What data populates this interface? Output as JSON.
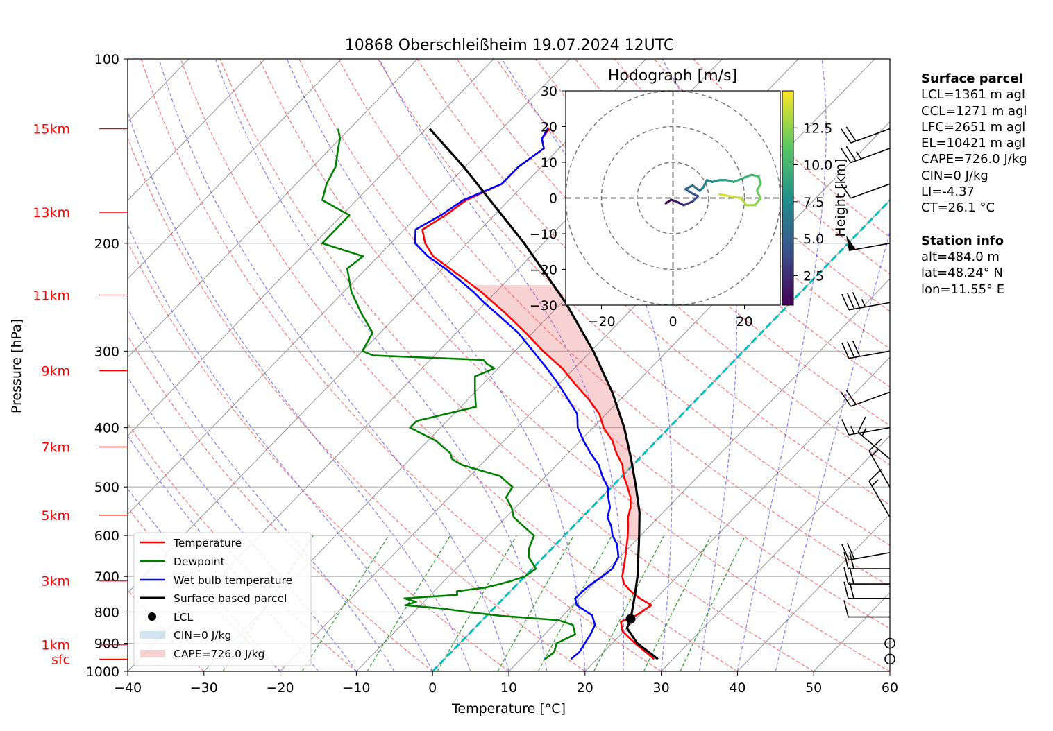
{
  "chart_data": {
    "type": "line",
    "title": "10868 Oberschleißheim 19.07.2024 12UTC",
    "xlabel": "Temperature [°C]",
    "ylabel": "Pressure [hPa]",
    "xlim": [
      -40,
      60
    ],
    "ylim": [
      1000,
      100
    ],
    "y_scale": "log",
    "skew": "skew-T",
    "grid": true,
    "legend_position": "lower-left",
    "x_ticks": [
      -40,
      -30,
      -20,
      -10,
      0,
      10,
      20,
      30,
      40,
      50,
      60
    ],
    "x_tick_labels": [
      "−40",
      "−30",
      "−20",
      "−10",
      "0",
      "10",
      "20",
      "30",
      "40",
      "50",
      "60"
    ],
    "y_ticks": [
      1000,
      900,
      800,
      700,
      600,
      500,
      400,
      300,
      200,
      100
    ],
    "height_markers": [
      {
        "label": "sfc",
        "p": 955
      },
      {
        "label": "1km",
        "p": 905
      },
      {
        "label": "3km",
        "p": 712
      },
      {
        "label": "5km",
        "p": 556
      },
      {
        "label": "7km",
        "p": 430
      },
      {
        "label": "9km",
        "p": 323
      },
      {
        "label": "11km",
        "p": 243
      },
      {
        "label": "13km",
        "p": 178
      },
      {
        "label": "15km",
        "p": 130
      }
    ],
    "series": [
      {
        "name": "Temperature",
        "color": "#ff0000",
        "p": [
          955,
          930,
          900,
          860,
          830,
          810,
          780,
          760,
          740,
          720,
          700,
          680,
          650,
          620,
          600,
          580,
          560,
          540,
          520,
          500,
          480,
          460,
          440,
          420,
          400,
          380,
          360,
          340,
          320,
          300,
          280,
          260,
          250,
          240,
          230,
          220,
          210,
          200,
          190,
          180,
          170,
          160,
          150,
          140,
          135,
          130
        ],
        "t": [
          27.5,
          25.5,
          23.0,
          19.8,
          18.4,
          19.6,
          20.3,
          17.9,
          15.8,
          14.0,
          12.8,
          12.0,
          10.7,
          9.3,
          8.3,
          7.2,
          6.0,
          5.1,
          3.8,
          2.1,
          0.2,
          -1.4,
          -3.7,
          -5.8,
          -8.6,
          -10.9,
          -14.1,
          -17.8,
          -21.6,
          -26.3,
          -30.9,
          -36.1,
          -39.0,
          -42.0,
          -45.4,
          -49.0,
          -52.8,
          -55.5,
          -57.6,
          -56.4,
          -55.6,
          -53.0,
          -53.0,
          -52.0,
          -53.5,
          -53.8
        ]
      },
      {
        "name": "Dewpoint",
        "color": "#008000",
        "p": [
          955,
          930,
          900,
          870,
          840,
          825,
          812,
          800,
          790,
          780,
          770,
          760,
          750,
          740,
          730,
          720,
          710,
          700,
          680,
          650,
          630,
          600,
          580,
          560,
          540,
          520,
          500,
          480,
          460,
          450,
          440,
          420,
          400,
          390,
          380,
          370,
          350,
          330,
          320,
          315,
          310,
          305,
          300,
          280,
          260,
          240,
          220,
          210,
          200,
          190,
          180,
          170,
          160,
          150,
          140,
          135,
          130
        ],
        "t": [
          13.2,
          13.5,
          12.7,
          14.0,
          12.5,
          10.0,
          2.0,
          -3.0,
          -6.5,
          -12.0,
          -11.0,
          -13.0,
          -6.5,
          -7.0,
          -3.8,
          -2.2,
          -1.0,
          0.0,
          0.5,
          -2.0,
          -3.0,
          -4.0,
          -6.5,
          -9.0,
          -10.5,
          -12.5,
          -13.0,
          -16.0,
          -22.5,
          -24.5,
          -25.5,
          -29.0,
          -34.0,
          -34.0,
          -31.0,
          -28.0,
          -30.0,
          -32.0,
          -30.5,
          -32.0,
          -33.0,
          -48.0,
          -50.0,
          -51.0,
          -55.0,
          -59.0,
          -62.5,
          -62.0,
          -69.0,
          -69.0,
          -69.0,
          -74.5,
          -76.0,
          -77.0,
          -79.0,
          -80.0,
          -81.5
        ]
      },
      {
        "name": "Wet bulb temperature",
        "color": "#0000ff",
        "p": [
          955,
          930,
          900,
          870,
          840,
          810,
          780,
          760,
          740,
          720,
          700,
          680,
          650,
          620,
          600,
          580,
          560,
          540,
          520,
          500,
          480,
          460,
          440,
          420,
          400,
          380,
          360,
          340,
          320,
          300,
          280,
          260,
          250,
          240,
          230,
          220,
          210,
          200,
          190,
          180,
          170,
          160,
          150,
          140,
          135,
          130
        ],
        "t": [
          16.6,
          16.8,
          16.4,
          16.0,
          15.4,
          13.8,
          10.5,
          9.4,
          9.5,
          9.7,
          10.2,
          10.5,
          9.8,
          8.0,
          6.3,
          5.0,
          3.3,
          2.4,
          0.9,
          -0.5,
          -2.6,
          -4.5,
          -7.1,
          -9.6,
          -12.0,
          -13.8,
          -16.8,
          -20.0,
          -23.6,
          -27.6,
          -31.9,
          -37.3,
          -40.2,
          -43.0,
          -46.2,
          -49.6,
          -53.5,
          -56.8,
          -58.5,
          -57.0,
          -56.0,
          -53.0,
          -53.0,
          -52.0,
          -53.5,
          -54.0
        ]
      },
      {
        "name": "Surface based parcel",
        "color": "#000000",
        "p": [
          955,
          900,
          850,
          821,
          800,
          750,
          700,
          650,
          600,
          550,
          500,
          450,
          400,
          350,
          300,
          250,
          200,
          150,
          130
        ],
        "t": [
          28.0,
          23.3,
          20.0,
          19.3,
          18.6,
          16.8,
          14.8,
          12.4,
          9.8,
          6.9,
          3.2,
          -1.0,
          -5.9,
          -12.0,
          -19.7,
          -29.5,
          -42.5,
          -60.2,
          -69.5
        ]
      }
    ],
    "lcl": {
      "p": 821,
      "t": 19.3,
      "label": "LCL"
    },
    "cin_label": "CIN=0 J/kg",
    "cape_label": "CAPE=726.0 J/kg",
    "wind_barbs": [
      {
        "p": 955,
        "dir": 350,
        "speed_kt": 3
      },
      {
        "p": 900,
        "dir": 330,
        "speed_kt": 3
      },
      {
        "p": 815,
        "dir": 270,
        "speed_kt": 10
      },
      {
        "p": 760,
        "dir": 270,
        "speed_kt": 20
      },
      {
        "p": 720,
        "dir": 270,
        "speed_kt": 20
      },
      {
        "p": 680,
        "dir": 270,
        "speed_kt": 20
      },
      {
        "p": 640,
        "dir": 260,
        "speed_kt": 20
      },
      {
        "p": 560,
        "dir": 330,
        "speed_kt": 15
      },
      {
        "p": 500,
        "dir": 330,
        "speed_kt": 15
      },
      {
        "p": 450,
        "dir": 310,
        "speed_kt": 15
      },
      {
        "p": 400,
        "dir": 260,
        "speed_kt": 15
      },
      {
        "p": 350,
        "dir": 250,
        "speed_kt": 20
      },
      {
        "p": 300,
        "dir": 260,
        "speed_kt": 30
      },
      {
        "p": 250,
        "dir": 260,
        "speed_kt": 35
      },
      {
        "p": 200,
        "dir": 260,
        "speed_kt": 50
      },
      {
        "p": 160,
        "dir": 250,
        "speed_kt": 10
      },
      {
        "p": 140,
        "dir": 250,
        "speed_kt": 25
      },
      {
        "p": 130,
        "dir": 250,
        "speed_kt": 20
      }
    ]
  },
  "hodograph": {
    "title": "Hodograph [m/s]",
    "xlim": [
      -30,
      30
    ],
    "ylim": [
      -30,
      30
    ],
    "x_ticks": [
      -20,
      0,
      20
    ],
    "x_tick_labels": [
      "−20",
      "0",
      "20"
    ],
    "y_ticks": [
      30,
      20,
      10,
      0,
      -10,
      -20,
      -30
    ],
    "y_tick_labels": [
      "30",
      "20",
      "10",
      "0",
      "−10",
      "−20",
      "−30"
    ],
    "rings": [
      10,
      20,
      30
    ],
    "colorbar_label": "Height [km]",
    "colorbar_ticks": [
      2.5,
      5.0,
      7.5,
      10.0,
      12.5
    ],
    "colorbar_tick_labels": [
      "2.5",
      "5.0",
      "7.5",
      "10.0",
      "12.5"
    ],
    "colorbar_range": [
      0.5,
      15
    ],
    "trace": [
      {
        "u": -2,
        "v": -1.5,
        "h": 0.5
      },
      {
        "u": -0.5,
        "v": -0.5,
        "h": 1.0
      },
      {
        "u": 1.0,
        "v": -1.0,
        "h": 1.5
      },
      {
        "u": 3.0,
        "v": -2.0,
        "h": 2.5
      },
      {
        "u": 5.5,
        "v": -1.0,
        "h": 3.5
      },
      {
        "u": 7.0,
        "v": 0.5,
        "h": 4.0
      },
      {
        "u": 5.0,
        "v": 1.5,
        "h": 4.5
      },
      {
        "u": 3.5,
        "v": 2.5,
        "h": 5.0
      },
      {
        "u": 5.5,
        "v": 3.5,
        "h": 5.5
      },
      {
        "u": 7.5,
        "v": 2.0,
        "h": 6.0
      },
      {
        "u": 8.5,
        "v": 3.0,
        "h": 6.5
      },
      {
        "u": 9.5,
        "v": 5.0,
        "h": 7.0
      },
      {
        "u": 11.0,
        "v": 4.5,
        "h": 7.5
      },
      {
        "u": 13.0,
        "v": 5.0,
        "h": 8.0
      },
      {
        "u": 15.0,
        "v": 5.0,
        "h": 8.5
      },
      {
        "u": 17.0,
        "v": 4.5,
        "h": 9.0
      },
      {
        "u": 19.5,
        "v": 5.5,
        "h": 9.5
      },
      {
        "u": 22.0,
        "v": 6.5,
        "h": 10.0
      },
      {
        "u": 24.0,
        "v": 6.0,
        "h": 10.5
      },
      {
        "u": 24.5,
        "v": 4.0,
        "h": 11.0
      },
      {
        "u": 23.5,
        "v": 2.0,
        "h": 11.5
      },
      {
        "u": 24.5,
        "v": 0.0,
        "h": 12.0
      },
      {
        "u": 23.0,
        "v": -2.0,
        "h": 12.5
      },
      {
        "u": 20.5,
        "v": -2.0,
        "h": 13.0
      },
      {
        "u": 19.0,
        "v": 0.0,
        "h": 13.5
      },
      {
        "u": 16.0,
        "v": 0.5,
        "h": 14.0
      },
      {
        "u": 13.0,
        "v": 1.0,
        "h": 14.5
      }
    ]
  },
  "info": {
    "surface_header": "Surface parcel",
    "surface_lines": [
      "LCL=1361 m agl",
      "CCL=1271 m agl",
      "LFC=2651 m agl",
      "EL=10421 m agl",
      "CAPE=726.0 J/kg",
      "CIN=0 J/kg",
      "LI=-4.37",
      "CT=26.1 °C"
    ],
    "station_header": "Station info",
    "station_lines": [
      "alt=484.0 m",
      "lat=48.24° N",
      "lon=11.55° E"
    ]
  }
}
